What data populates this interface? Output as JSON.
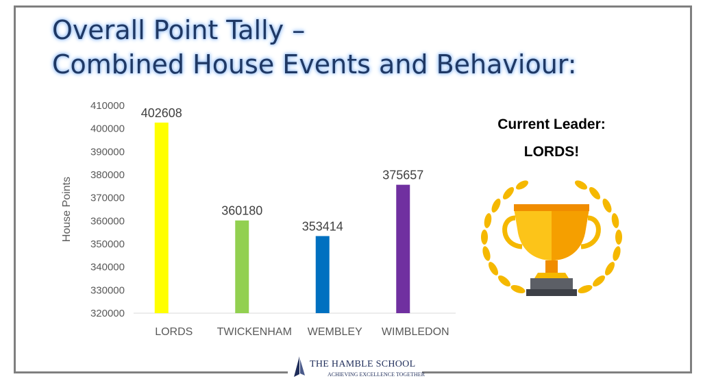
{
  "title_line1": "Overall Point Tally –",
  "title_line2": "Combined House Events and Behaviour:",
  "leader": {
    "label": "Current Leader:",
    "name": "LORDS!"
  },
  "footer": {
    "school": "THE HAMBLE SCHOOL",
    "motto": "ACHIEVING EXCELLENCE TOGETHER"
  },
  "chart_data": {
    "type": "bar",
    "categories": [
      "LORDS",
      "TWICKENHAM",
      "WEMBLEY",
      "WIMBLEDON"
    ],
    "values": [
      402608,
      360180,
      353414,
      375657
    ],
    "colors": [
      "#ffff00",
      "#92d050",
      "#0070c0",
      "#7030a0"
    ],
    "ylabel": "House Points",
    "xlabel": "",
    "ylim": [
      320000,
      410000
    ],
    "yticks": [
      320000,
      330000,
      340000,
      350000,
      360000,
      370000,
      380000,
      390000,
      400000,
      410000
    ],
    "data_labels": true,
    "grid": false
  }
}
